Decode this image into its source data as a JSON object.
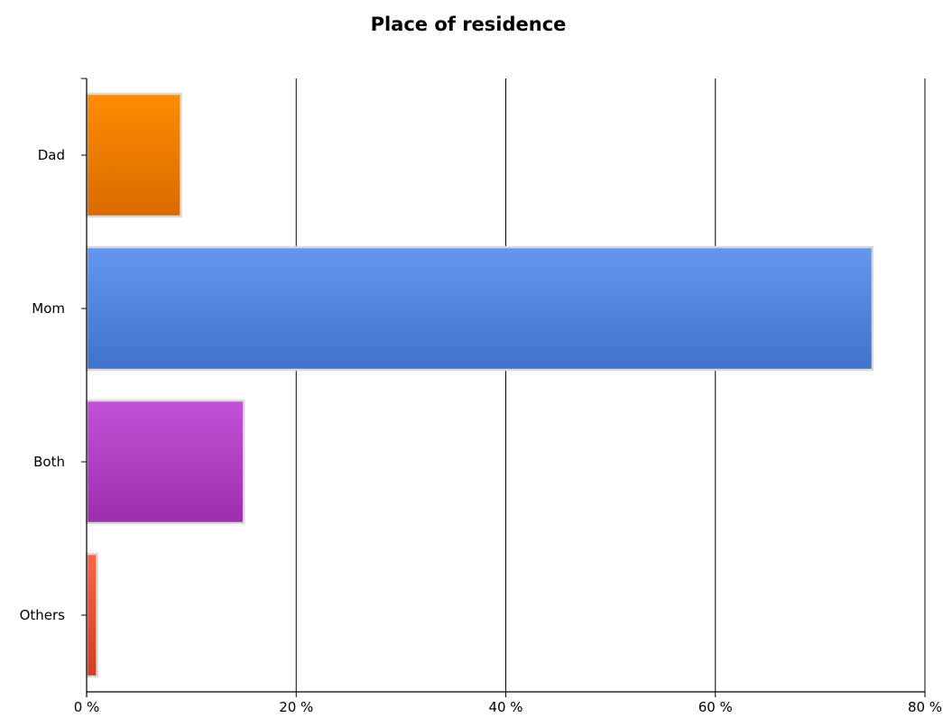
{
  "chart_data": {
    "type": "bar",
    "orientation": "horizontal",
    "title": "Place of residence",
    "xlabel": "",
    "ylabel": "",
    "categories": [
      "Dad",
      "Mom",
      "Both",
      "Others"
    ],
    "values": [
      9,
      75,
      15,
      1
    ],
    "value_unit": "%",
    "xlim": [
      0,
      80
    ],
    "x_ticks": [
      0,
      20,
      40,
      60,
      80
    ],
    "x_tick_labels": [
      "0 %",
      "20 %",
      "40 %",
      "60 %",
      "80 %"
    ],
    "grid": "vertical",
    "legend": "none",
    "colors": [
      {
        "top": "#ff8c00",
        "bottom": "#d96a00"
      },
      {
        "top": "#6497ee",
        "bottom": "#3f72cc"
      },
      {
        "top": "#c252d6",
        "bottom": "#9a2faf"
      },
      {
        "top": "#ff6347",
        "bottom": "#d63a22"
      }
    ]
  }
}
